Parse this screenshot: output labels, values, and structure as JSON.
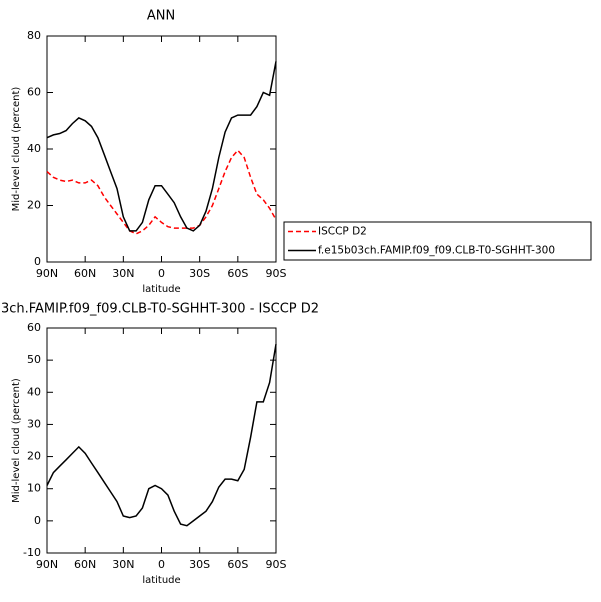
{
  "chart_data": [
    {
      "type": "line",
      "title": "ANN",
      "xlabel": "latitude",
      "ylabel": "Mid-level cloud (percent)",
      "x": [
        90,
        85,
        80,
        75,
        70,
        65,
        60,
        55,
        50,
        45,
        40,
        35,
        30,
        25,
        20,
        15,
        10,
        5,
        0,
        -5,
        -10,
        -15,
        -20,
        -25,
        -30,
        -35,
        -40,
        -45,
        -50,
        -55,
        -60,
        -65,
        -70,
        -75,
        -80,
        -85,
        -90
      ],
      "xlim": [
        90,
        -90
      ],
      "xticks": [
        {
          "value": 90,
          "label": "90N"
        },
        {
          "value": 60,
          "label": "60N"
        },
        {
          "value": 30,
          "label": "30N"
        },
        0,
        {
          "value": -30,
          "label": "30S"
        },
        {
          "value": -60,
          "label": "60S"
        },
        {
          "value": -90,
          "label": "90S"
        }
      ],
      "ylim": [
        0,
        80
      ],
      "yticks": [
        0,
        20,
        40,
        60,
        80
      ],
      "legend": "right",
      "series": [
        {
          "name": "ISCCP D2",
          "color": "#ff0000",
          "dash": true,
          "values": [
            32,
            30,
            29,
            28.5,
            29,
            28,
            28,
            29,
            27,
            23,
            20,
            17,
            14,
            11,
            10,
            11,
            13,
            16,
            14,
            12.5,
            12,
            12,
            12,
            12,
            13,
            16,
            20,
            26,
            32,
            37,
            39.5,
            37,
            30,
            24,
            22,
            19,
            15
          ]
        },
        {
          "name": "f.e15b03ch.FAMIP.f09_f09.CLB-T0-SGHHT-300",
          "color": "#000000",
          "dash": false,
          "values": [
            44,
            45,
            45.5,
            46.5,
            49,
            51,
            50,
            48,
            44,
            38,
            32,
            26,
            16,
            11,
            11,
            14,
            22,
            27,
            27,
            24,
            21,
            16,
            12,
            11,
            13,
            18,
            26,
            37,
            46,
            51,
            52,
            52,
            52,
            55,
            60,
            59,
            71
          ]
        }
      ]
    },
    {
      "type": "line",
      "title": "3ch.FAMIP.f09_f09.CLB-T0-SGHHT-300 - ISCCP D2",
      "xlabel": "latitude",
      "ylabel": "Mid-level cloud (percent)",
      "x": [
        90,
        85,
        80,
        75,
        70,
        65,
        60,
        55,
        50,
        45,
        40,
        35,
        30,
        25,
        20,
        15,
        10,
        5,
        0,
        -5,
        -10,
        -15,
        -20,
        -25,
        -30,
        -35,
        -40,
        -45,
        -50,
        -55,
        -60,
        -65,
        -70,
        -75,
        -80,
        -85,
        -90
      ],
      "xlim": [
        90,
        -90
      ],
      "xticks": [
        {
          "value": 90,
          "label": "90N"
        },
        {
          "value": 60,
          "label": "60N"
        },
        {
          "value": 30,
          "label": "30N"
        },
        0,
        {
          "value": -30,
          "label": "30S"
        },
        {
          "value": -60,
          "label": "60S"
        },
        {
          "value": -90,
          "label": "90S"
        }
      ],
      "ylim": [
        -10,
        60
      ],
      "yticks": [
        -10,
        0,
        10,
        20,
        30,
        40,
        50,
        60
      ],
      "series": [
        {
          "color": "#000000",
          "dash": false,
          "values": [
            11,
            15,
            17,
            19,
            21,
            23,
            21,
            18,
            15,
            12,
            9,
            6,
            1.5,
            1,
            1.5,
            4,
            10,
            11,
            10,
            8,
            3,
            -1,
            -1.5,
            0,
            1.5,
            3,
            6,
            10.5,
            13,
            13,
            12.5,
            16,
            26,
            37,
            37,
            43,
            55
          ]
        }
      ]
    }
  ]
}
